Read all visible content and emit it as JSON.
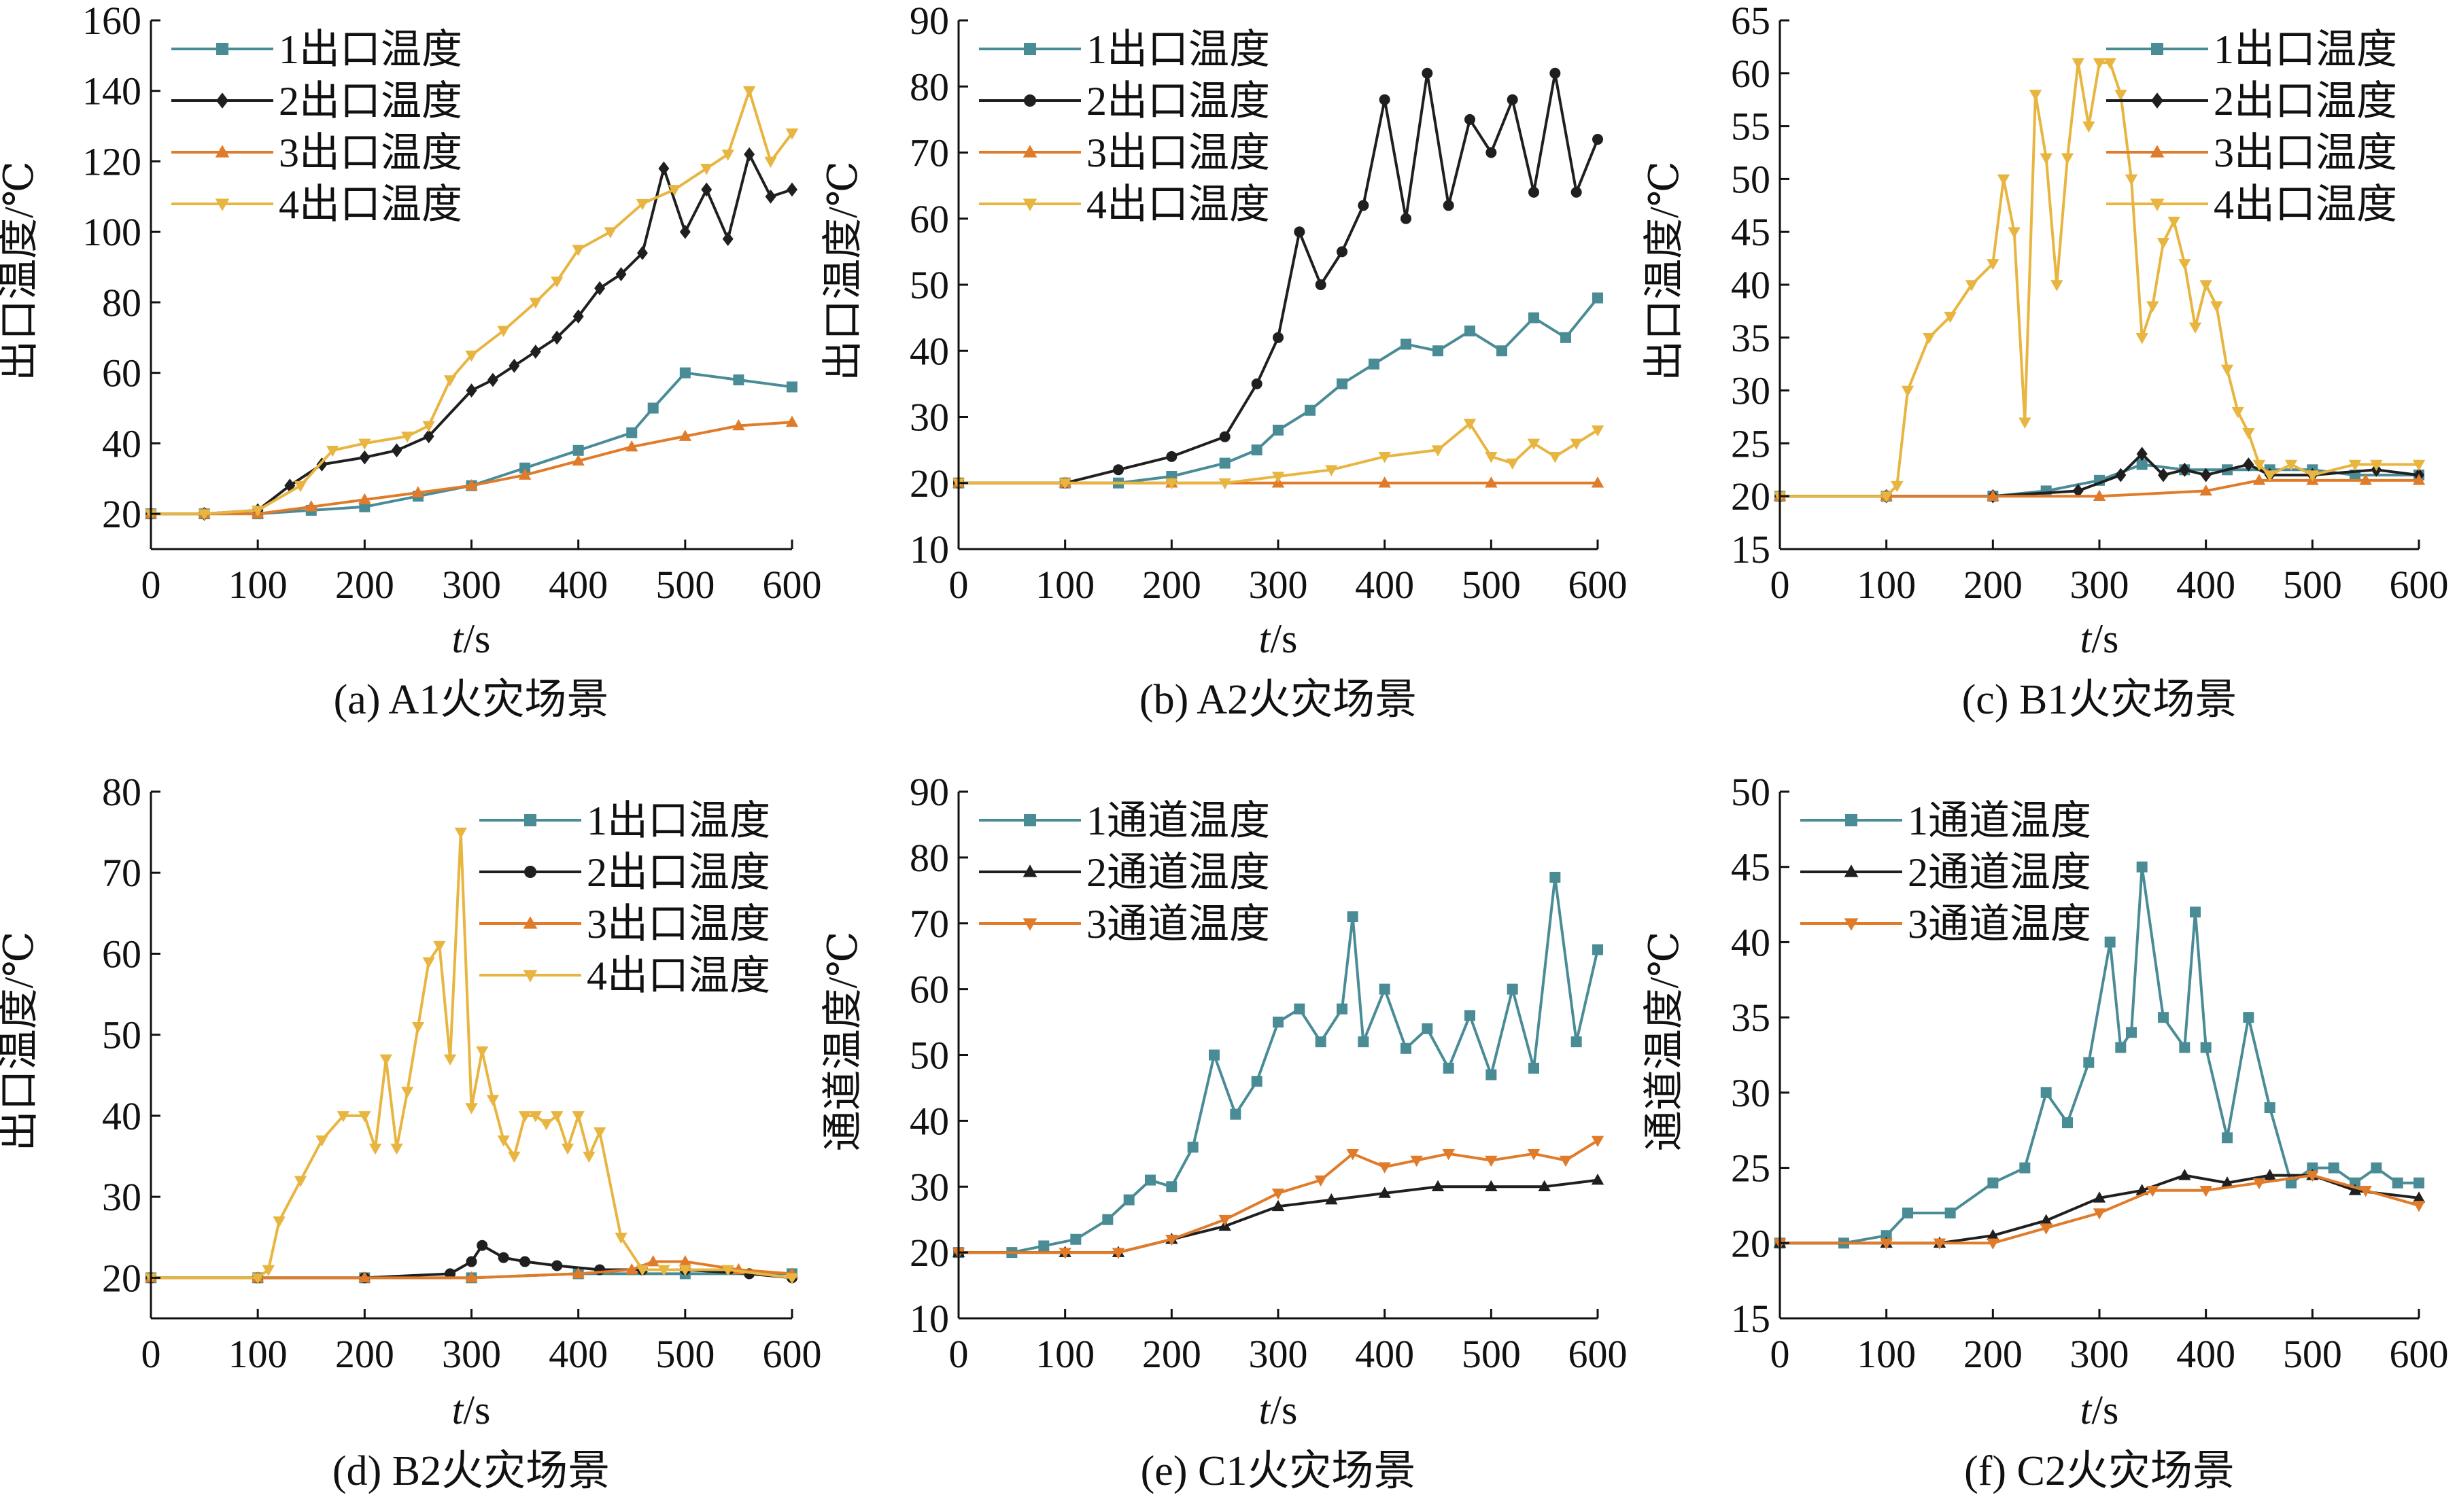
{
  "colors": {
    "s1": "#4a8c96",
    "s2": "#1f1f1f",
    "s3": "#e07b2a",
    "s4": "#e8b540"
  },
  "chart_data": [
    {
      "type": "line",
      "caption": "(a) A1火灾场景",
      "xlabel_italic": "t",
      "xlabel_rest": "/s",
      "ylabel": "出口温度/℃",
      "xlim": [
        0,
        600
      ],
      "ylim": [
        10,
        160
      ],
      "xticks": [
        0,
        100,
        200,
        300,
        400,
        500,
        600
      ],
      "yticks": [
        20,
        40,
        60,
        80,
        100,
        120,
        140,
        160
      ],
      "legend_position": "top-left",
      "series": [
        {
          "name": "1出口温度",
          "marker": "square",
          "color_key": "s1",
          "x": [
            0,
            50,
            100,
            150,
            200,
            250,
            300,
            350,
            400,
            450,
            470,
            500,
            550,
            600
          ],
          "y": [
            20,
            20,
            20,
            21,
            22,
            25,
            28,
            33,
            38,
            43,
            50,
            60,
            58,
            56
          ]
        },
        {
          "name": "2出口温度",
          "marker": "diamond",
          "color_key": "s2",
          "x": [
            0,
            50,
            100,
            130,
            160,
            200,
            230,
            260,
            300,
            320,
            340,
            360,
            380,
            400,
            420,
            440,
            460,
            480,
            500,
            520,
            540,
            560,
            580,
            600
          ],
          "y": [
            20,
            20,
            21,
            28,
            34,
            36,
            38,
            42,
            55,
            58,
            62,
            66,
            70,
            76,
            84,
            88,
            94,
            118,
            100,
            112,
            98,
            122,
            110,
            112
          ]
        },
        {
          "name": "3出口温度",
          "marker": "triangle-up",
          "color_key": "s3",
          "x": [
            0,
            50,
            100,
            150,
            200,
            250,
            300,
            350,
            400,
            450,
            500,
            550,
            600
          ],
          "y": [
            20,
            20,
            20,
            22,
            24,
            26,
            28,
            31,
            35,
            39,
            42,
            45,
            46
          ]
        },
        {
          "name": "4出口温度",
          "marker": "triangle-down",
          "color_key": "s4",
          "x": [
            0,
            50,
            100,
            140,
            170,
            200,
            240,
            260,
            280,
            300,
            330,
            360,
            380,
            400,
            430,
            460,
            490,
            520,
            540,
            560,
            580,
            600
          ],
          "y": [
            20,
            20,
            21,
            28,
            38,
            40,
            42,
            45,
            58,
            65,
            72,
            80,
            86,
            95,
            100,
            108,
            112,
            118,
            122,
            140,
            120,
            128
          ]
        }
      ]
    },
    {
      "type": "line",
      "caption": "(b) A2火灾场景",
      "xlabel_italic": "t",
      "xlabel_rest": "/s",
      "ylabel": "出口温度/℃",
      "xlim": [
        0,
        600
      ],
      "ylim": [
        10,
        90
      ],
      "xticks": [
        0,
        100,
        200,
        300,
        400,
        500,
        600
      ],
      "yticks": [
        10,
        20,
        30,
        40,
        50,
        60,
        70,
        80,
        90
      ],
      "legend_position": "top-left",
      "series": [
        {
          "name": "1出口温度",
          "marker": "square",
          "color_key": "s1",
          "x": [
            0,
            100,
            150,
            200,
            250,
            280,
            300,
            330,
            360,
            390,
            420,
            450,
            480,
            510,
            540,
            570,
            600
          ],
          "y": [
            20,
            20,
            20,
            21,
            23,
            25,
            28,
            31,
            35,
            38,
            41,
            40,
            43,
            40,
            45,
            42,
            48
          ]
        },
        {
          "name": "2出口温度",
          "marker": "circle",
          "color_key": "s2",
          "x": [
            0,
            100,
            150,
            200,
            250,
            280,
            300,
            320,
            340,
            360,
            380,
            400,
            420,
            440,
            460,
            480,
            500,
            520,
            540,
            560,
            580,
            600
          ],
          "y": [
            20,
            20,
            22,
            24,
            27,
            35,
            42,
            58,
            50,
            55,
            62,
            78,
            60,
            82,
            62,
            75,
            70,
            78,
            64,
            82,
            64,
            72
          ]
        },
        {
          "name": "3出口温度",
          "marker": "triangle-up",
          "color_key": "s3",
          "x": [
            0,
            100,
            200,
            300,
            400,
            500,
            600
          ],
          "y": [
            20,
            20,
            20,
            20,
            20,
            20,
            20
          ]
        },
        {
          "name": "4出口温度",
          "marker": "triangle-down",
          "color_key": "s4",
          "x": [
            0,
            100,
            200,
            250,
            300,
            350,
            400,
            450,
            480,
            500,
            520,
            540,
            560,
            580,
            600
          ],
          "y": [
            20,
            20,
            20,
            20,
            21,
            22,
            24,
            25,
            29,
            24,
            23,
            26,
            24,
            26,
            28
          ]
        }
      ]
    },
    {
      "type": "line",
      "caption": "(c) B1火灾场景",
      "xlabel_italic": "t",
      "xlabel_rest": "/s",
      "ylabel": "出口温度/℃",
      "xlim": [
        0,
        600
      ],
      "ylim": [
        15,
        65
      ],
      "xticks": [
        0,
        100,
        200,
        300,
        400,
        500,
        600
      ],
      "yticks": [
        15,
        20,
        25,
        30,
        35,
        40,
        45,
        50,
        55,
        60,
        65
      ],
      "legend_position": "top-right",
      "series": [
        {
          "name": "1出口温度",
          "marker": "square",
          "color_key": "s1",
          "x": [
            0,
            100,
            200,
            250,
            300,
            340,
            380,
            420,
            460,
            500,
            540,
            600
          ],
          "y": [
            20,
            20,
            20,
            20.5,
            21.5,
            23,
            22.5,
            22.5,
            22.5,
            22.5,
            22,
            22
          ]
        },
        {
          "name": "2出口温度",
          "marker": "diamond",
          "color_key": "s2",
          "x": [
            0,
            100,
            200,
            280,
            320,
            340,
            360,
            380,
            400,
            440,
            460,
            500,
            560,
            600
          ],
          "y": [
            20,
            20,
            20,
            20.5,
            22,
            24,
            22,
            22.5,
            22,
            23,
            22,
            22,
            22.5,
            22
          ]
        },
        {
          "name": "3出口温度",
          "marker": "triangle-up",
          "color_key": "s3",
          "x": [
            0,
            100,
            200,
            300,
            400,
            450,
            500,
            550,
            600
          ],
          "y": [
            20,
            20,
            20,
            20,
            20.5,
            21.5,
            21.5,
            21.5,
            21.5
          ]
        },
        {
          "name": "4出口温度",
          "marker": "triangle-down",
          "color_key": "s4",
          "x": [
            0,
            100,
            110,
            120,
            140,
            160,
            180,
            200,
            210,
            220,
            230,
            240,
            250,
            260,
            270,
            280,
            290,
            300,
            310,
            320,
            330,
            340,
            350,
            360,
            370,
            380,
            390,
            400,
            410,
            420,
            430,
            440,
            450,
            460,
            480,
            500,
            540,
            560,
            600
          ],
          "y": [
            20,
            20,
            21,
            30,
            35,
            37,
            40,
            42,
            50,
            45,
            27,
            58,
            52,
            40,
            52,
            61,
            55,
            61,
            61,
            58,
            50,
            35,
            38,
            44,
            46,
            42,
            36,
            40,
            38,
            32,
            28,
            26,
            23,
            22,
            23,
            22,
            23,
            23,
            23
          ]
        }
      ]
    },
    {
      "type": "line",
      "caption": "(d) B2火灾场景",
      "xlabel_italic": "t",
      "xlabel_rest": "/s",
      "ylabel": "出口温度/℃",
      "xlim": [
        0,
        600
      ],
      "ylim": [
        15,
        80
      ],
      "xticks": [
        0,
        100,
        200,
        300,
        400,
        500,
        600
      ],
      "yticks": [
        20,
        30,
        40,
        50,
        60,
        70,
        80
      ],
      "legend_position": "top-right",
      "series": [
        {
          "name": "1出口温度",
          "marker": "square",
          "color_key": "s1",
          "x": [
            0,
            100,
            200,
            300,
            400,
            500,
            600
          ],
          "y": [
            20,
            20,
            20,
            20,
            20.5,
            20.5,
            20.5
          ]
        },
        {
          "name": "2出口温度",
          "marker": "circle",
          "color_key": "s2",
          "x": [
            0,
            100,
            200,
            280,
            300,
            310,
            330,
            350,
            380,
            420,
            460,
            500,
            560,
            600
          ],
          "y": [
            20,
            20,
            20,
            20.5,
            22,
            24,
            22.5,
            22,
            21.5,
            21,
            21,
            21,
            20.5,
            20
          ]
        },
        {
          "name": "3出口温度",
          "marker": "triangle-up",
          "color_key": "s3",
          "x": [
            0,
            100,
            200,
            300,
            400,
            450,
            470,
            500,
            550,
            600
          ],
          "y": [
            20,
            20,
            20,
            20,
            20.5,
            21,
            22,
            22,
            21,
            20.5
          ]
        },
        {
          "name": "4出口温度",
          "marker": "triangle-down",
          "color_key": "s4",
          "x": [
            0,
            100,
            110,
            120,
            140,
            160,
            180,
            200,
            210,
            220,
            230,
            240,
            250,
            260,
            270,
            280,
            290,
            300,
            310,
            320,
            330,
            340,
            350,
            360,
            370,
            380,
            390,
            400,
            410,
            420,
            440,
            460,
            480,
            500,
            540,
            600
          ],
          "y": [
            20,
            20,
            21,
            27,
            32,
            37,
            40,
            40,
            36,
            47,
            36,
            43,
            51,
            59,
            61,
            47,
            75,
            41,
            48,
            42,
            37,
            35,
            40,
            40,
            39,
            40,
            36,
            40,
            35,
            38,
            25,
            21,
            21,
            21,
            21,
            20
          ]
        }
      ]
    },
    {
      "type": "line",
      "caption": "(e) C1火灾场景",
      "xlabel_italic": "t",
      "xlabel_rest": "/s",
      "ylabel": "通道温度/℃",
      "xlim": [
        0,
        600
      ],
      "ylim": [
        10,
        90
      ],
      "xticks": [
        0,
        100,
        200,
        300,
        400,
        500,
        600
      ],
      "yticks": [
        10,
        20,
        30,
        40,
        50,
        60,
        70,
        80,
        90
      ],
      "legend_position": "top-left",
      "series": [
        {
          "name": "1通道温度",
          "marker": "square",
          "color_key": "s1",
          "x": [
            0,
            50,
            80,
            110,
            140,
            160,
            180,
            200,
            220,
            240,
            260,
            280,
            300,
            320,
            340,
            360,
            370,
            380,
            400,
            420,
            440,
            460,
            480,
            500,
            520,
            540,
            560,
            580,
            600
          ],
          "y": [
            20,
            20,
            21,
            22,
            25,
            28,
            31,
            30,
            36,
            50,
            41,
            46,
            55,
            57,
            52,
            57,
            71,
            52,
            60,
            51,
            54,
            48,
            56,
            47,
            60,
            48,
            77,
            52,
            66
          ]
        },
        {
          "name": "2通道温度",
          "marker": "triangle-up",
          "color_key": "s2",
          "x": [
            0,
            100,
            150,
            200,
            250,
            300,
            350,
            400,
            450,
            500,
            550,
            600
          ],
          "y": [
            20,
            20,
            20,
            22,
            24,
            27,
            28,
            29,
            30,
            30,
            30,
            31
          ]
        },
        {
          "name": "3通道温度",
          "marker": "triangle-down",
          "color_key": "s3",
          "x": [
            0,
            100,
            150,
            200,
            250,
            300,
            340,
            370,
            400,
            430,
            460,
            500,
            540,
            570,
            600
          ],
          "y": [
            20,
            20,
            20,
            22,
            25,
            29,
            31,
            35,
            33,
            34,
            35,
            34,
            35,
            34,
            37
          ]
        }
      ]
    },
    {
      "type": "line",
      "caption": "(f) C2火灾场景",
      "xlabel_italic": "t",
      "xlabel_rest": "/s",
      "ylabel": "通道温度/℃",
      "xlim": [
        0,
        600
      ],
      "ylim": [
        15,
        50
      ],
      "xticks": [
        0,
        100,
        200,
        300,
        400,
        500,
        600
      ],
      "yticks": [
        15,
        20,
        25,
        30,
        35,
        40,
        45,
        50
      ],
      "legend_position": "top-left",
      "series": [
        {
          "name": "1通道温度",
          "marker": "square",
          "color_key": "s1",
          "x": [
            0,
            60,
            100,
            120,
            160,
            200,
            230,
            250,
            270,
            290,
            310,
            320,
            330,
            340,
            360,
            380,
            390,
            400,
            420,
            440,
            460,
            480,
            500,
            520,
            540,
            560,
            580,
            600
          ],
          "y": [
            20,
            20,
            20.5,
            22,
            22,
            24,
            25,
            30,
            28,
            32,
            40,
            33,
            34,
            45,
            35,
            33,
            42,
            33,
            27,
            35,
            29,
            24,
            25,
            25,
            24,
            25,
            24,
            24
          ]
        },
        {
          "name": "2通道温度",
          "marker": "triangle-up",
          "color_key": "s2",
          "x": [
            0,
            100,
            150,
            200,
            250,
            300,
            340,
            380,
            420,
            460,
            500,
            540,
            600
          ],
          "y": [
            20,
            20,
            20,
            20.5,
            21.5,
            23,
            23.5,
            24.5,
            24,
            24.5,
            24.5,
            23.5,
            23
          ]
        },
        {
          "name": "3通道温度",
          "marker": "triangle-down",
          "color_key": "s3",
          "x": [
            0,
            100,
            150,
            200,
            250,
            300,
            350,
            400,
            450,
            500,
            550,
            600
          ],
          "y": [
            20,
            20,
            20,
            20,
            21,
            22,
            23.5,
            23.5,
            24,
            24.5,
            23.5,
            22.5
          ]
        }
      ]
    }
  ]
}
